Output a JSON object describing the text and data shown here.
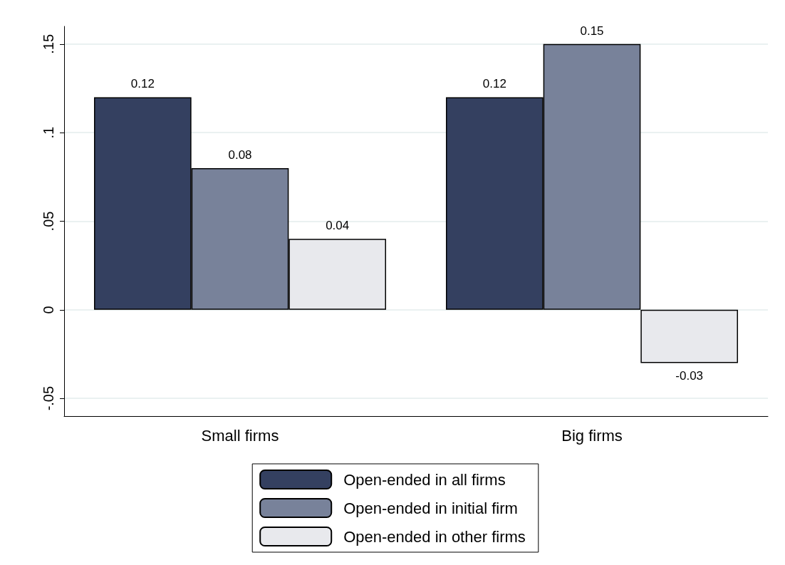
{
  "chart_data": {
    "type": "bar",
    "categories": [
      "Small firms",
      "Big firms"
    ],
    "series": [
      {
        "name": "Open-ended in all firms",
        "color": "#344060",
        "values": [
          0.12,
          0.12
        ]
      },
      {
        "name": "Open-ended in initial firm",
        "color": "#78829a",
        "values": [
          0.08,
          0.15
        ]
      },
      {
        "name": "Open-ended in other firms",
        "color": "#e8e9ed",
        "values": [
          0.04,
          -0.03
        ]
      }
    ],
    "ylim": [
      -0.06,
      0.16
    ],
    "yticks": [
      {
        "value": -0.05,
        "label": "-.05"
      },
      0,
      {
        "value": 0.05,
        "label": ".05"
      },
      {
        "value": 0.1,
        "label": ".1"
      },
      {
        "value": 0.15,
        "label": ".15"
      }
    ],
    "grid": "y",
    "legend": "bottom",
    "data_labels": true
  }
}
